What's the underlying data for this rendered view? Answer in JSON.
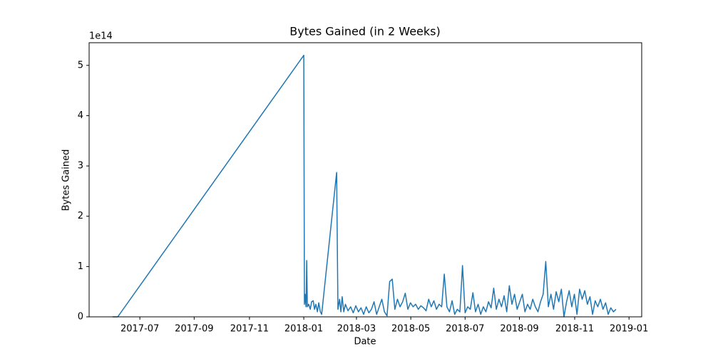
{
  "chart_data": {
    "type": "line",
    "title": "Bytes Gained (in 2 Weeks)",
    "x_label": "Date",
    "y_label": "Bytes Gained",
    "y_offset_text": "1e14",
    "x": [
      2017.412,
      2017.428,
      2018.0,
      2018.002,
      2018.004,
      2018.007,
      2018.009,
      2018.011,
      2018.015,
      2018.02,
      2018.024,
      2018.029,
      2018.033,
      2018.037,
      2018.042,
      2018.046,
      2018.051,
      2018.055,
      2018.101,
      2018.105,
      2018.11,
      2018.114,
      2018.118,
      2018.123,
      2018.128,
      2018.136,
      2018.144,
      2018.152,
      2018.16,
      2018.168,
      2018.176,
      2018.184,
      2018.192,
      2018.2,
      2018.208,
      2018.216,
      2018.224,
      2018.232,
      2018.24,
      2018.248,
      2018.256,
      2018.264,
      2018.272,
      2018.28,
      2018.288,
      2018.296,
      2018.304,
      2018.312,
      2018.32,
      2018.328,
      2018.336,
      2018.344,
      2018.352,
      2018.36,
      2018.368,
      2018.376,
      2018.384,
      2018.392,
      2018.4,
      2018.408,
      2018.416,
      2018.424,
      2018.432,
      2018.44,
      2018.448,
      2018.456,
      2018.464,
      2018.472,
      2018.48,
      2018.488,
      2018.496,
      2018.504,
      2018.512,
      2018.52,
      2018.528,
      2018.536,
      2018.544,
      2018.552,
      2018.56,
      2018.568,
      2018.576,
      2018.584,
      2018.592,
      2018.6,
      2018.608,
      2018.616,
      2018.624,
      2018.632,
      2018.64,
      2018.648,
      2018.656,
      2018.664,
      2018.672,
      2018.68,
      2018.688,
      2018.696,
      2018.704,
      2018.712,
      2018.72,
      2018.728,
      2018.736,
      2018.744,
      2018.752,
      2018.76,
      2018.768,
      2018.776,
      2018.784,
      2018.792,
      2018.8,
      2018.808,
      2018.816,
      2018.824,
      2018.832,
      2018.84,
      2018.848,
      2018.856,
      2018.864,
      2018.872,
      2018.88,
      2018.888,
      2018.896,
      2018.904,
      2018.912,
      2018.92,
      2018.928,
      2018.936,
      2018.944,
      2018.952,
      2018.96
    ],
    "series": [
      {
        "name": "Bytes Gained",
        "color": "#1f77b4",
        "values": [
          0,
          0,
          5.2,
          0.25,
          0.45,
          0.2,
          1.12,
          0.2,
          0.25,
          0.15,
          0.3,
          0.32,
          0.15,
          0.25,
          0.1,
          0.28,
          0.1,
          0.05,
          2.87,
          0.15,
          0.35,
          0.1,
          0.4,
          0.1,
          0.25,
          0.12,
          0.2,
          0.08,
          0.22,
          0.1,
          0.18,
          0.05,
          0.2,
          0.08,
          0.15,
          0.3,
          0.05,
          0.2,
          0.35,
          0.1,
          0.02,
          0.7,
          0.75,
          0.15,
          0.35,
          0.2,
          0.3,
          0.47,
          0.15,
          0.28,
          0.2,
          0.25,
          0.15,
          0.22,
          0.18,
          0.12,
          0.35,
          0.2,
          0.32,
          0.15,
          0.25,
          0.2,
          0.85,
          0.2,
          0.1,
          0.32,
          0.05,
          0.15,
          0.1,
          1.02,
          0.08,
          0.2,
          0.15,
          0.48,
          0.1,
          0.25,
          0.05,
          0.2,
          0.1,
          0.3,
          0.18,
          0.57,
          0.15,
          0.35,
          0.2,
          0.42,
          0.1,
          0.62,
          0.25,
          0.45,
          0.15,
          0.3,
          0.45,
          0.1,
          0.25,
          0.15,
          0.35,
          0.2,
          0.1,
          0.3,
          0.45,
          1.1,
          0.2,
          0.45,
          0.15,
          0.5,
          0.3,
          0.55,
          0.0,
          0.3,
          0.52,
          0.2,
          0.45,
          0.05,
          0.55,
          0.35,
          0.52,
          0.25,
          0.4,
          0.05,
          0.32,
          0.2,
          0.35,
          0.15,
          0.28,
          0.05,
          0.18,
          0.1,
          0.15
        ]
      }
    ],
    "xlim": [
      2017.34,
      2019.039
    ],
    "xticks": [
      {
        "value": 2017.496,
        "label": "2017-07"
      },
      {
        "value": 2017.663,
        "label": "2017-09"
      },
      {
        "value": 2017.833,
        "label": "2017-11"
      },
      {
        "value": 2018.0,
        "label": "2018-01"
      },
      {
        "value": 2018.162,
        "label": "2018-03"
      },
      {
        "value": 2018.329,
        "label": "2018-05"
      },
      {
        "value": 2018.496,
        "label": "2018-07"
      },
      {
        "value": 2018.663,
        "label": "2018-09"
      },
      {
        "value": 2018.833,
        "label": "2018-11"
      },
      {
        "value": 2019.0,
        "label": "2019-01"
      }
    ],
    "ylim": [
      0,
      5.45
    ],
    "yticks": [
      0,
      1,
      2,
      3,
      4,
      5
    ],
    "grid": false
  }
}
